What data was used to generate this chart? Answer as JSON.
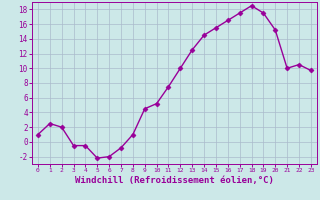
{
  "x": [
    0,
    1,
    2,
    3,
    4,
    5,
    6,
    7,
    8,
    9,
    10,
    11,
    12,
    13,
    14,
    15,
    16,
    17,
    18,
    19,
    20,
    21,
    22,
    23
  ],
  "y": [
    1,
    2.5,
    2,
    -0.5,
    -0.5,
    -2.2,
    -2.0,
    -0.8,
    1,
    4.5,
    5.2,
    7.5,
    10,
    12.5,
    14.5,
    15.5,
    16.5,
    17.5,
    18.5,
    17.5,
    15.2,
    10,
    10.5,
    9.7
  ],
  "line_color": "#990099",
  "marker": "D",
  "marker_size": 2.5,
  "linewidth": 1.0,
  "xlabel": "Windchill (Refroidissement éolien,°C)",
  "xlabel_fontsize": 6.5,
  "bg_color": "#cce8e8",
  "grid_color": "#aabbcc",
  "tick_color": "#990099",
  "label_color": "#990099",
  "ylim": [
    -3,
    19
  ],
  "xlim": [
    -0.5,
    23.5
  ],
  "yticks": [
    -2,
    0,
    2,
    4,
    6,
    8,
    10,
    12,
    14,
    16,
    18
  ],
  "xticks": [
    0,
    1,
    2,
    3,
    4,
    5,
    6,
    7,
    8,
    9,
    10,
    11,
    12,
    13,
    14,
    15,
    16,
    17,
    18,
    19,
    20,
    21,
    22,
    23
  ]
}
